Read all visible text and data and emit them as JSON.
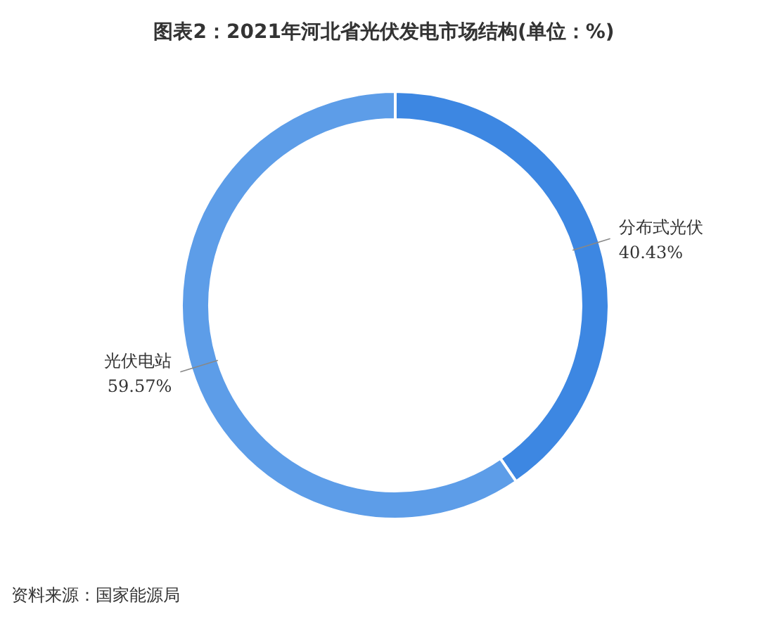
{
  "chart_data": {
    "type": "donut",
    "title": "图表2：2021年河北省光伏发电市场结构(单位：%)",
    "categories": [
      "分布式光伏",
      "光伏电站"
    ],
    "values": [
      40.43,
      59.57
    ],
    "value_labels": [
      "40.43%",
      "59.57%"
    ],
    "colors": [
      "#3d87e2",
      "#5d9de8"
    ],
    "annotations": [
      "资料来源：国家能源局"
    ]
  }
}
